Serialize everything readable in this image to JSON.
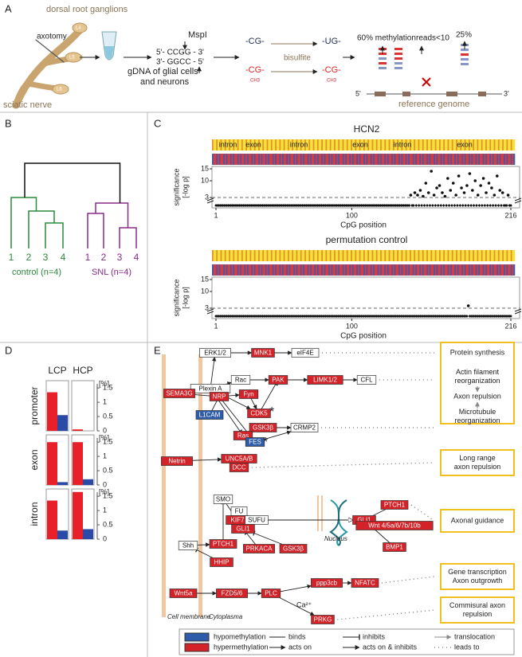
{
  "panel_a": {
    "label": "A",
    "items": [
      "dorsal root ganglions",
      "L4",
      "axotomy",
      "L5",
      "L6",
      "sciatic nerve",
      "gDNA of glial cells",
      "and neurons",
      "MspI",
      "5'- CCGG - 3'",
      "3'- GGCC - 5'",
      "-CG-",
      "-CG-",
      "CH3",
      "bisulfite",
      "-UG-",
      "-CG-",
      "CH3",
      "60% methylation",
      "reads<10",
      "25%",
      "5'",
      "3'",
      "reference genome"
    ]
  },
  "panel_b": {
    "label": "B",
    "control_leaves": [
      "1",
      "2",
      "3",
      "4"
    ],
    "control_group": "control (n=4)",
    "snl_leaves": [
      "1",
      "2",
      "3",
      "4"
    ],
    "snl_group": "SNL (n=4)"
  },
  "panel_c": {
    "label": "C",
    "plots": [
      {
        "title": "HCN2",
        "regions": [
          "intron",
          "exon",
          "intron",
          "exon",
          "intron",
          "exon"
        ],
        "points": {
          "x": [
            143,
            146,
            148,
            150,
            152,
            154,
            156,
            158,
            160,
            162,
            164,
            166,
            168,
            170,
            172,
            174,
            176,
            178,
            180,
            182,
            184,
            186,
            188,
            190,
            192,
            194,
            196,
            198,
            200,
            202,
            204,
            206,
            208,
            210,
            214
          ],
          "y": [
            4,
            5,
            4,
            6,
            3.5,
            9,
            5,
            14,
            4,
            7,
            8,
            5,
            3.5,
            11,
            6,
            9,
            4,
            12,
            7,
            5,
            8,
            13,
            6,
            10,
            4,
            8,
            11,
            5,
            9,
            7,
            4,
            12,
            6,
            5,
            4
          ]
        }
      },
      {
        "title": "permutation control",
        "points": {
          "x": [
            185
          ],
          "y": [
            4
          ]
        }
      }
    ],
    "ylabel": [
      "significance",
      "[-log p]"
    ],
    "xlabel": "CpG position",
    "xlim": [
      1,
      216
    ],
    "xticks": [
      1,
      100,
      216
    ],
    "ylim": [
      3,
      15
    ],
    "yticks": [
      3,
      10,
      15
    ],
    "threshold": 3
  },
  "panel_d": {
    "label": "D",
    "columns": [
      "LCP",
      "HCP"
    ],
    "rows": [
      "promoter",
      "exon",
      "intron"
    ],
    "unit": "[%]",
    "ylim": [
      0,
      1.7
    ],
    "yticks": [
      0,
      0.5,
      1,
      1.5
    ],
    "hypermethylation": [
      [
        1.35,
        0.05
      ],
      [
        1.5,
        1.5
      ],
      [
        1.35,
        1.65
      ]
    ],
    "hypomethylation": [
      [
        0.55,
        0
      ],
      [
        0.1,
        0.2
      ],
      [
        0.3,
        0.35
      ]
    ]
  },
  "panel_e": {
    "label": "E",
    "nodes": [
      "ERK1/2",
      "MNK1",
      "eIF4E",
      "Rac",
      "PAK",
      "LIMK1/2",
      "CFL",
      "Plexin A",
      "NRP",
      "SEMA3G",
      "Fyn",
      "CDK5",
      "L1CAM",
      "GSK3β",
      "CRMP2",
      "Ras",
      "FES",
      "Netrin",
      "UNC5A/B",
      "DCC",
      "SMO",
      "FU",
      "KIF7",
      "SUFU",
      "GLI1",
      "GLI1",
      "PTCH1",
      "Wnt 4/5a/6/7b/10b",
      "BMP1",
      "Shh",
      "PTCH1",
      "HHIP",
      "PRKACA",
      "GSK3β",
      "Wnt5a",
      "FZD5/6",
      "PLC",
      "ppp3cb",
      "NFATC",
      "PRKG"
    ],
    "calcium": "Ca²⁺",
    "asterisk": "*",
    "compartments": [
      "Cell membrane",
      "Cytoplasma",
      "Nucleus"
    ],
    "outcomes": [
      [
        "Protein synthesis"
      ],
      [
        "Actin filament",
        "reorganization"
      ],
      [
        "Axon repulsion"
      ],
      [
        "Microtubule",
        "reorganization"
      ],
      [
        "Long range",
        "axon repulsion"
      ],
      [
        "Axonal guidance"
      ],
      [
        "Gene transcription",
        "Axon outgrowth"
      ],
      [
        "Commisural axon",
        "repulsion"
      ]
    ],
    "legend": [
      "hypomethylation",
      "hypermethylation",
      "binds",
      "acts on",
      "inhibits",
      "acts on & inhibits",
      "translocation",
      "leads to"
    ]
  }
}
